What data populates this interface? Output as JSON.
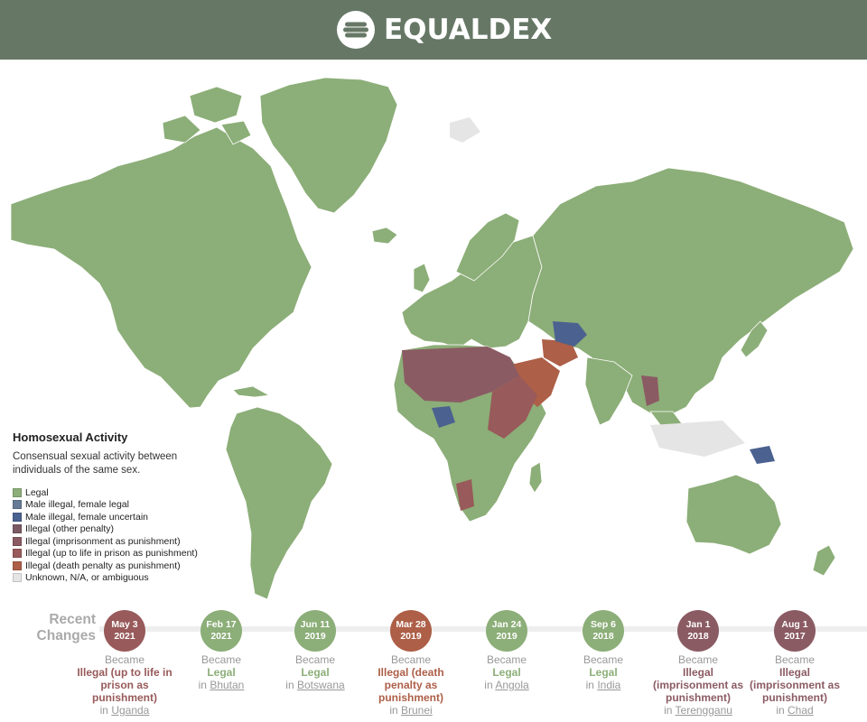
{
  "brand": {
    "name": "EQUALDEX"
  },
  "colors": {
    "legal": "#8cae78",
    "male_illegal_female_legal": "#667b96",
    "male_illegal_female_uncertain": "#4b6190",
    "illegal_other": "#7c5a63",
    "illegal_imprisonment": "#8b5b63",
    "illegal_life": "#985a5a",
    "illegal_death": "#ad5f47",
    "unknown": "#e5e5e5"
  },
  "legend": {
    "title": "Homosexual Activity",
    "description": "Consensual sexual activity between individuals of the same sex.",
    "items": [
      {
        "label": "Legal",
        "color": "#8cae78"
      },
      {
        "label": "Male illegal, female legal",
        "color": "#667b96"
      },
      {
        "label": "Male illegal, female uncertain",
        "color": "#4b6190"
      },
      {
        "label": "Illegal (other penalty)",
        "color": "#7c5a63"
      },
      {
        "label": "Illegal (imprisonment as punishment)",
        "color": "#8b5b63"
      },
      {
        "label": "Illegal (up to life in prison as punishment)",
        "color": "#985a5a"
      },
      {
        "label": "Illegal (death penalty as punishment)",
        "color": "#ad5f47"
      },
      {
        "label": "Unknown, N/A, or ambiguous",
        "color": "#e5e5e5"
      }
    ]
  },
  "recent": {
    "line1": "Recent",
    "line2": "Changes"
  },
  "changes": [
    {
      "date1": "May 3",
      "date2": "2021",
      "became": "Became",
      "status": "Illegal (up to life in prison as punishment)",
      "color": "#985a5a",
      "in": "in",
      "place": "Uganda"
    },
    {
      "date1": "Feb 17",
      "date2": "2021",
      "became": "Became",
      "status": "Legal",
      "color": "#8cae78",
      "in": "in",
      "place": "Bhutan"
    },
    {
      "date1": "Jun 11",
      "date2": "2019",
      "became": "Became",
      "status": "Legal",
      "color": "#8cae78",
      "in": "in",
      "place": "Botswana"
    },
    {
      "date1": "Mar 28",
      "date2": "2019",
      "became": "Became",
      "status": "Illegal (death penalty as punishment)",
      "color": "#ad5f47",
      "in": "in",
      "place": "Brunei"
    },
    {
      "date1": "Jan 24",
      "date2": "2019",
      "became": "Became",
      "status": "Legal",
      "color": "#8cae78",
      "in": "in",
      "place": "Angola"
    },
    {
      "date1": "Sep 6",
      "date2": "2018",
      "became": "Became",
      "status": "Legal",
      "color": "#8cae78",
      "in": "in",
      "place": "India"
    },
    {
      "date1": "Jan 1",
      "date2": "2018",
      "became": "Became",
      "status": "Illegal (imprisonment as punishment)",
      "color": "#8b5b63",
      "in": "in",
      "place": "Terengganu"
    },
    {
      "date1": "Aug 1",
      "date2": "2017",
      "became": "Became",
      "status": "Illegal (imprisonment as punishment)",
      "color": "#8b5b63",
      "in": "in",
      "place": "Chad"
    }
  ]
}
